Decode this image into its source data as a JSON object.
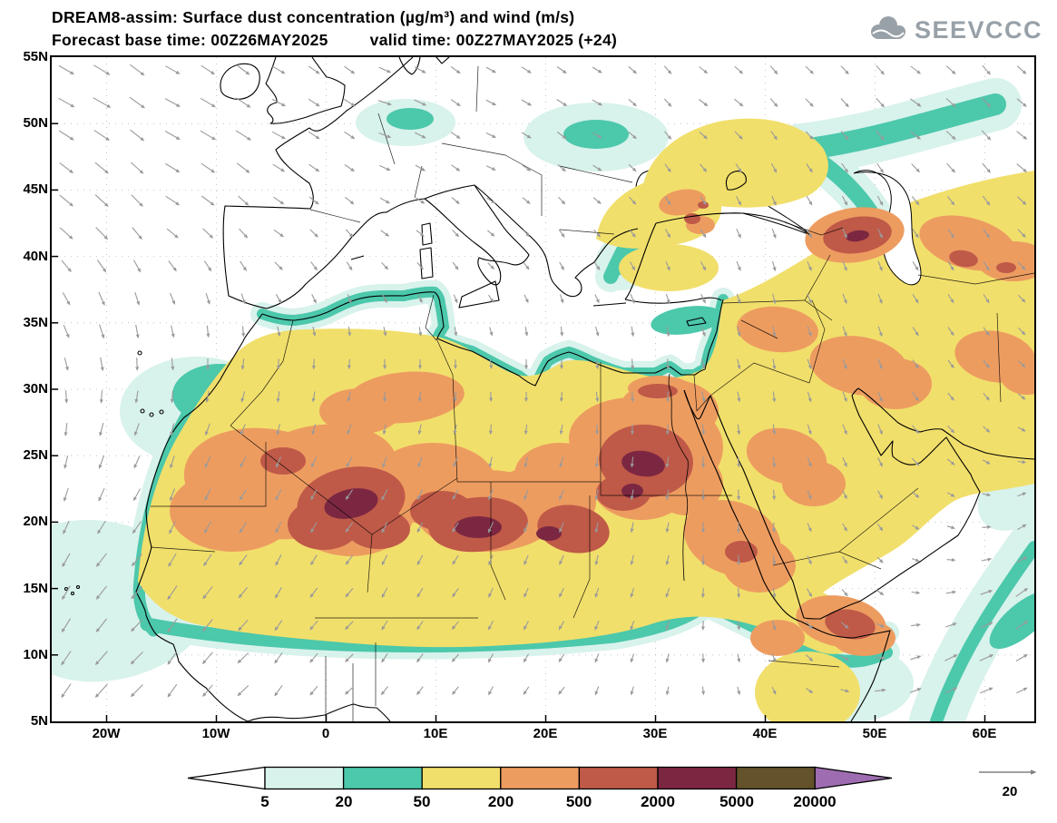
{
  "header": {
    "title": "DREAM8-assim: Surface dust concentration (µg/m³) and wind (m/s)",
    "forecast_base": "Forecast base time: 00Z26MAY2025",
    "valid": "valid time: 00Z27MAY2025 (+24)",
    "logo_text": "SEEVCCC"
  },
  "chart_data": {
    "type": "heatmap",
    "title": "DREAM8-assim: Surface dust concentration (µg/m³) and wind (m/s)",
    "model": "DREAM8-assim",
    "variable": "Surface dust concentration",
    "units": "µg/m³",
    "wind_units": "m/s",
    "forecast_base_time": "00Z26MAY2025",
    "valid_time": "00Z27MAY2025",
    "forecast_lead": "+24",
    "lat_ticks": [
      "55N",
      "50N",
      "45N",
      "40N",
      "35N",
      "30N",
      "25N",
      "20N",
      "15N",
      "10N",
      "5N"
    ],
    "lon_ticks": [
      "20W",
      "10W",
      "0",
      "10E",
      "20E",
      "30E",
      "40E",
      "50E",
      "60E"
    ],
    "colorbar": {
      "levels": [
        5,
        20,
        50,
        200,
        500,
        2000,
        5000,
        20000
      ],
      "colors": [
        "#ffffff",
        "#d8f2ec",
        "#4cc8ab",
        "#f1df6b",
        "#ed9c60",
        "#bf5948",
        "#7c2742",
        "#63522a",
        "#9e6cb0"
      ]
    },
    "wind_color": "#9a9a9a",
    "wind_reference": {
      "value": 20,
      "units": "m/s"
    }
  }
}
